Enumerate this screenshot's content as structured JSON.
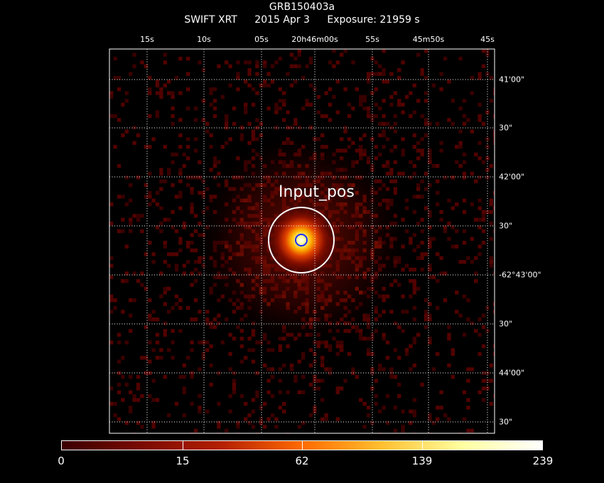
{
  "header": {
    "target": "GRB150403a",
    "instrument": "SWIFT XRT",
    "date": "2015 Apr  3",
    "exposure": "Exposure: 21959 s"
  },
  "axes": {
    "ra_ticks": [
      "15s",
      "10s",
      "05s",
      "20h46m00s",
      "55s",
      "45m50s",
      "45s"
    ],
    "dec_ticks": [
      "41'00\"",
      "30\"",
      "42'00\"",
      "30\"",
      "-62°43'00\"",
      "30\"",
      "44'00\"",
      "30\""
    ]
  },
  "source": {
    "label": "Input_pos"
  },
  "colorbar": {
    "ticks": [
      "0",
      "15",
      "62",
      "139",
      "239"
    ],
    "colors": [
      "#3a0000",
      "#7a0a00",
      "#b52000",
      "#ff6a00",
      "#ffc030",
      "#ffffa0",
      "#ffffff"
    ]
  },
  "colors": {
    "background": "#000000",
    "grid": "#ffffff",
    "circle": "#ffffff",
    "error_circle": "#1a2aff"
  }
}
